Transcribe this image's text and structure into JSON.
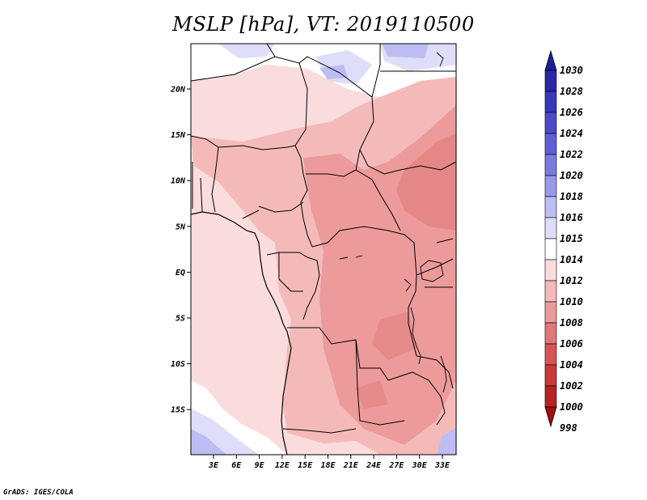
{
  "title": "MSLP [hPa], VT: 2019110500",
  "footer": "GrADS: IGES/COLA",
  "map": {
    "lat_labels": [
      "20N",
      "15N",
      "10N",
      "5N",
      "EQ",
      "5S",
      "10S",
      "15S"
    ],
    "lon_labels": [
      "3E",
      "6E",
      "9E",
      "12E",
      "15E",
      "18E",
      "21E",
      "24E",
      "27E",
      "30E",
      "33E"
    ]
  },
  "colorbar": {
    "levels": [
      "1030",
      "1028",
      "1026",
      "1024",
      "1022",
      "1020",
      "1018",
      "1016",
      "1015",
      "1014",
      "1012",
      "1010",
      "1008",
      "1006",
      "1004",
      "1002",
      "1000",
      "998"
    ],
    "colors": [
      "#1e1e96",
      "#2828a8",
      "#3737b9",
      "#4b4bc8",
      "#5f5fd6",
      "#7a7ae0",
      "#9999ea",
      "#bdbdf4",
      "#dedefa",
      "#ffffff",
      "#fbdcdc",
      "#f4baba",
      "#ec9a9a",
      "#e07878",
      "#d65454",
      "#cc3838",
      "#b82323",
      "#a01010"
    ]
  }
}
